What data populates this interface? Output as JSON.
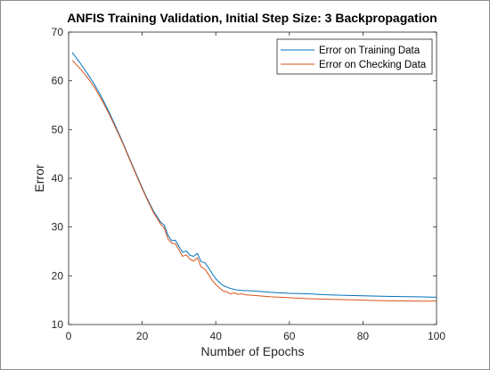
{
  "chart_data": {
    "type": "line",
    "title": "ANFIS Training Validation, Initial Step Size: 3 Backpropagation",
    "xlabel": "Number of Epochs",
    "ylabel": "Error",
    "xlim": [
      0,
      100
    ],
    "ylim": [
      10,
      70
    ],
    "xticks": [
      "0",
      "20",
      "40",
      "60",
      "80",
      "100"
    ],
    "yticks": [
      "10",
      "20",
      "30",
      "40",
      "50",
      "60",
      "70"
    ],
    "xtick_values": [
      0,
      20,
      40,
      60,
      80,
      100
    ],
    "ytick_values": [
      10,
      20,
      30,
      40,
      50,
      60,
      70
    ],
    "grid": false,
    "legend_position": "top-right",
    "series": [
      {
        "name": "Error on Training Data",
        "color": "#0072bd",
        "points": [
          [
            1,
            65.8
          ],
          [
            3,
            63.8
          ],
          [
            5,
            61.6
          ],
          [
            7,
            59.3
          ],
          [
            9,
            56.6
          ],
          [
            11,
            53.6
          ],
          [
            13,
            50.3
          ],
          [
            15,
            46.9
          ],
          [
            17,
            43.3
          ],
          [
            19,
            39.8
          ],
          [
            21,
            36.4
          ],
          [
            23,
            33.4
          ],
          [
            25,
            31.0
          ],
          [
            26,
            30.4
          ],
          [
            27,
            28.3
          ],
          [
            28,
            27.2
          ],
          [
            29,
            27.3
          ],
          [
            30,
            26.0
          ],
          [
            31,
            24.8
          ],
          [
            32,
            25.1
          ],
          [
            33,
            24.2
          ],
          [
            34,
            24.0
          ],
          [
            35,
            24.6
          ],
          [
            36,
            22.9
          ],
          [
            37,
            22.7
          ],
          [
            38,
            21.7
          ],
          [
            39,
            20.5
          ],
          [
            40,
            19.4
          ],
          [
            41,
            18.6
          ],
          [
            42,
            18.0
          ],
          [
            43,
            17.7
          ],
          [
            44,
            17.4
          ],
          [
            45,
            17.2
          ],
          [
            46,
            17.1
          ],
          [
            47,
            17.0
          ],
          [
            50,
            16.9
          ],
          [
            55,
            16.6
          ],
          [
            60,
            16.4
          ],
          [
            65,
            16.3
          ],
          [
            70,
            16.1
          ],
          [
            75,
            16.0
          ],
          [
            80,
            15.9
          ],
          [
            85,
            15.8
          ],
          [
            90,
            15.75
          ],
          [
            95,
            15.7
          ],
          [
            100,
            15.6
          ]
        ]
      },
      {
        "name": "Error on Checking Data",
        "color": "#d95319",
        "points": [
          [
            1,
            64.2
          ],
          [
            3,
            62.6
          ],
          [
            5,
            60.8
          ],
          [
            7,
            58.7
          ],
          [
            9,
            56.1
          ],
          [
            11,
            53.2
          ],
          [
            13,
            50.0
          ],
          [
            15,
            46.7
          ],
          [
            17,
            43.1
          ],
          [
            19,
            39.6
          ],
          [
            21,
            36.2
          ],
          [
            23,
            33.1
          ],
          [
            25,
            30.6
          ],
          [
            26,
            29.8
          ],
          [
            27,
            27.6
          ],
          [
            28,
            26.7
          ],
          [
            29,
            26.6
          ],
          [
            30,
            25.3
          ],
          [
            31,
            24.0
          ],
          [
            32,
            24.3
          ],
          [
            33,
            23.4
          ],
          [
            34,
            23.0
          ],
          [
            35,
            23.7
          ],
          [
            36,
            21.8
          ],
          [
            37,
            21.4
          ],
          [
            38,
            20.3
          ],
          [
            39,
            19.1
          ],
          [
            40,
            18.2
          ],
          [
            41,
            17.5
          ],
          [
            42,
            16.9
          ],
          [
            43,
            16.7
          ],
          [
            44,
            16.3
          ],
          [
            45,
            16.5
          ],
          [
            46,
            16.2
          ],
          [
            47,
            16.3
          ],
          [
            48,
            16.1
          ],
          [
            50,
            16.0
          ],
          [
            55,
            15.7
          ],
          [
            60,
            15.5
          ],
          [
            65,
            15.3
          ],
          [
            70,
            15.2
          ],
          [
            75,
            15.1
          ],
          [
            80,
            15.0
          ],
          [
            85,
            14.9
          ],
          [
            90,
            14.85
          ],
          [
            95,
            14.8
          ],
          [
            100,
            14.8
          ]
        ]
      }
    ]
  }
}
